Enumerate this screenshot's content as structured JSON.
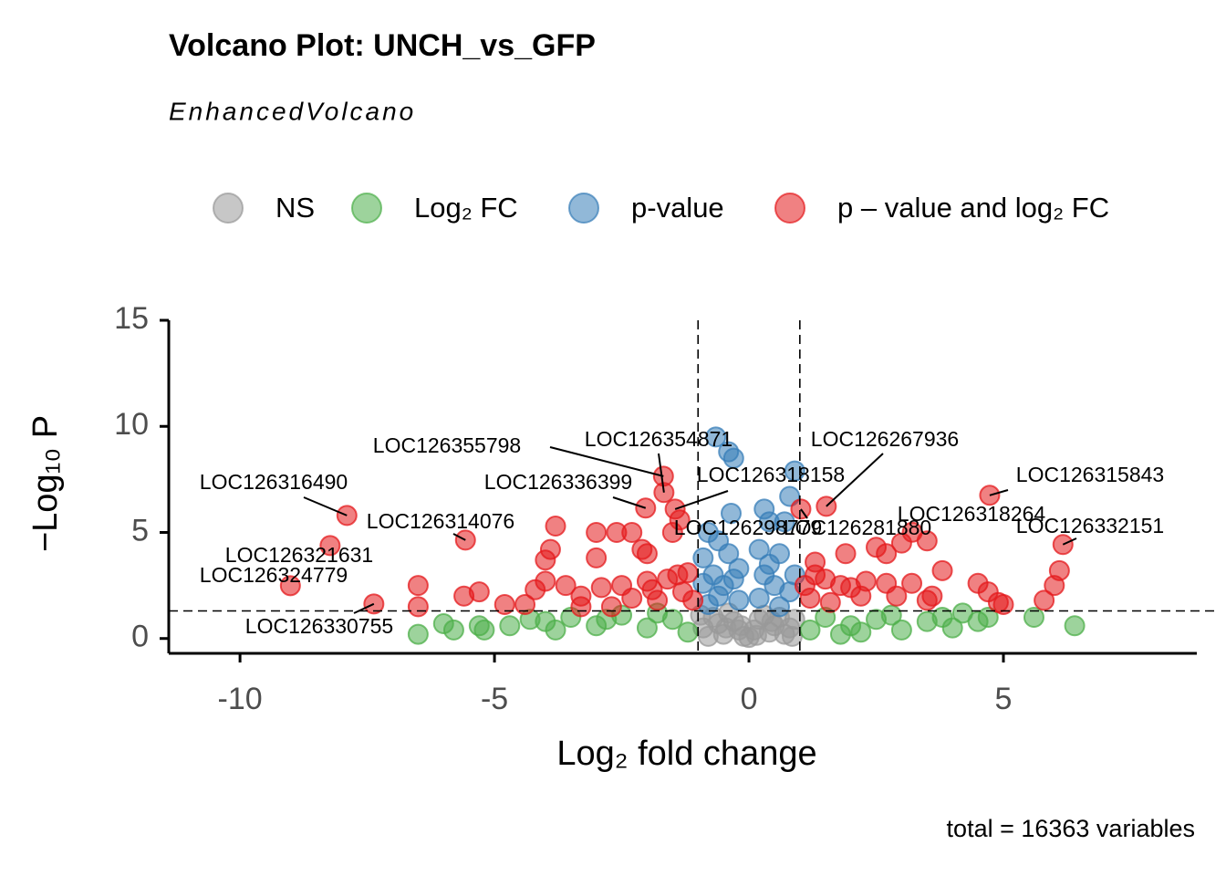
{
  "chart_data": {
    "type": "scatter",
    "title": "Volcano Plot: UNCH_vs_GFP",
    "subtitle": "EnhancedVolcano",
    "caption": "total = 16363 variables",
    "xlabel": "Log₂ fold change",
    "ylabel": "−Log₁₀ P",
    "xlim": [
      -11.4,
      8.8
    ],
    "ylim": [
      -0.7,
      15
    ],
    "xticks": [
      -10,
      -5,
      0,
      5
    ],
    "yticks": [
      0,
      5,
      10,
      15
    ],
    "vlines": [
      -1,
      1
    ],
    "hline": 1.3,
    "legend": "top",
    "series": [
      {
        "name": "NS",
        "color": "#999999",
        "x": [
          -0.9,
          -0.7,
          -0.5,
          -0.3,
          -0.1,
          0.1,
          0.3,
          0.5,
          0.7,
          0.9,
          -0.8,
          -0.6,
          -0.4,
          -0.2,
          0,
          0.2,
          0.4,
          0.6,
          0.8,
          -0.95,
          0.15,
          -0.15,
          0.45,
          -0.45,
          0.85
        ],
        "y": [
          0.5,
          1.0,
          0.2,
          0.8,
          0.1,
          0.4,
          1.1,
          0.6,
          0.2,
          0.9,
          0.1,
          0.7,
          1.2,
          0.4,
          0.05,
          0.9,
          0.3,
          1.0,
          0.5,
          1.1,
          0.15,
          0.6,
          0.8,
          0.5,
          0.1
        ]
      },
      {
        "name": "Log₂ FC",
        "color": "#4daf4a",
        "x": [
          -6.5,
          -6.0,
          -5.8,
          -5.2,
          -4.7,
          -4.0,
          -3.5,
          -3.0,
          -2.5,
          -2.0,
          -1.5,
          -1.2,
          -3.8,
          -2.8,
          -4.3,
          -5.3,
          -1.8,
          1.2,
          1.5,
          2.0,
          2.5,
          3.0,
          3.5,
          4.0,
          4.5,
          4.7,
          5.6,
          6.4,
          3.8,
          1.8,
          2.8,
          2.2,
          4.2
        ],
        "y": [
          0.2,
          0.7,
          0.4,
          0.4,
          0.6,
          0.8,
          1.0,
          0.6,
          1.1,
          0.5,
          0.9,
          0.3,
          0.4,
          0.9,
          0.9,
          0.6,
          1.2,
          0.4,
          1.0,
          0.6,
          0.9,
          0.4,
          0.8,
          0.5,
          0.8,
          1.0,
          1.0,
          0.6,
          1.0,
          0.2,
          1.1,
          0.3,
          1.2
        ]
      },
      {
        "name": "p-value",
        "color": "#377eb8",
        "x": [
          -0.65,
          -0.4,
          -0.3,
          0.9,
          0.8,
          -0.35,
          0.3,
          0.4,
          -0.8,
          -0.6,
          -0.9,
          -0.4,
          0.2,
          0.6,
          0.7,
          -0.7,
          -0.3,
          0.3,
          0.5,
          -0.6,
          -0.2,
          0.2,
          0.8,
          -0.8,
          0.6,
          -0.5,
          0.4,
          -0.2,
          0.9,
          -0.9
        ],
        "y": [
          9.5,
          8.8,
          8.5,
          7.9,
          6.7,
          5.9,
          6.1,
          5.5,
          5.0,
          4.6,
          3.8,
          4.0,
          4.2,
          4.0,
          5.5,
          3.0,
          2.8,
          3.0,
          2.5,
          2.0,
          1.8,
          1.9,
          2.2,
          1.6,
          1.5,
          2.5,
          3.5,
          3.3,
          3.0,
          2.6
        ]
      },
      {
        "name": "p – value and log₂ FC",
        "color": "#e41a1c",
        "x": [
          -1.68,
          -1.67,
          -7.9,
          -2.03,
          -1.45,
          1.52,
          4.73,
          -5.57,
          -1.36,
          1.02,
          3.21,
          6.17,
          -8.23,
          -9.01,
          -7.37,
          -3.8,
          -3.0,
          -2.6,
          -2.3,
          -2.0,
          -3.9,
          -4.0,
          -3.0,
          -2.1,
          -1.5,
          -1.6,
          -1.4,
          -1.2,
          -2.0,
          -2.5,
          -3.3,
          -4.0,
          -4.2,
          -4.4,
          -3.6,
          -2.9,
          -2.3,
          -1.8,
          -1.3,
          -6.5,
          -6.5,
          -5.3,
          -5.6,
          -4.8,
          -3.3,
          -2.7,
          -1.1,
          -1.9,
          1.1,
          1.3,
          1.5,
          1.8,
          2.2,
          2.5,
          2.7,
          3.0,
          3.5,
          2.7,
          2.9,
          3.2,
          3.5,
          3.8,
          4.5,
          4.7,
          4.9,
          5.0,
          5.8,
          6.0,
          6.1,
          1.2,
          1.6,
          2.0,
          3.6,
          1.9,
          1.3,
          2.3
        ],
        "y": [
          7.65,
          6.88,
          5.8,
          6.15,
          6.1,
          6.23,
          6.75,
          4.64,
          5.59,
          6.1,
          5.01,
          4.43,
          4.38,
          2.49,
          1.63,
          5.3,
          5.0,
          5.0,
          5.0,
          4.0,
          4.2,
          3.7,
          3.8,
          4.2,
          5.0,
          2.8,
          3.0,
          3.1,
          2.7,
          2.5,
          2.0,
          2.7,
          2.3,
          1.6,
          2.5,
          2.4,
          1.9,
          1.8,
          2.2,
          2.5,
          1.5,
          2.2,
          2.0,
          1.6,
          1.5,
          1.5,
          1.8,
          2.3,
          2.5,
          3.0,
          2.8,
          2.5,
          2.0,
          4.3,
          4.0,
          4.5,
          4.6,
          2.6,
          2.0,
          2.6,
          1.8,
          3.2,
          2.6,
          2.2,
          1.7,
          1.6,
          1.8,
          2.5,
          3.2,
          1.9,
          1.7,
          2.4,
          2.0,
          4.0,
          3.6,
          2.7
        ],
        "point_labels": [
          "LOC126355798",
          "LOC126354871",
          "LOC126316490",
          "LOC126336399",
          "LOC126318158",
          "LOC126267936",
          "LOC126315843",
          "LOC126314076",
          "LOC126298779",
          "LOC126281880",
          "LOC126318264",
          "LOC126332151",
          "LOC126321631",
          "LOC126324779",
          "LOC126330755",
          null,
          null,
          null,
          null,
          null,
          null,
          null,
          null,
          null,
          null,
          null,
          null,
          null,
          null,
          null,
          null,
          null,
          null,
          null,
          null,
          null,
          null,
          null,
          null,
          null,
          null,
          null,
          null,
          null,
          null,
          null,
          null,
          null,
          null,
          null,
          null,
          null,
          null,
          null,
          null,
          null,
          null,
          null,
          null,
          null,
          null,
          null,
          null,
          null,
          null,
          null,
          null,
          null,
          null,
          null,
          null,
          null,
          null,
          null,
          null,
          null
        ]
      }
    ]
  }
}
